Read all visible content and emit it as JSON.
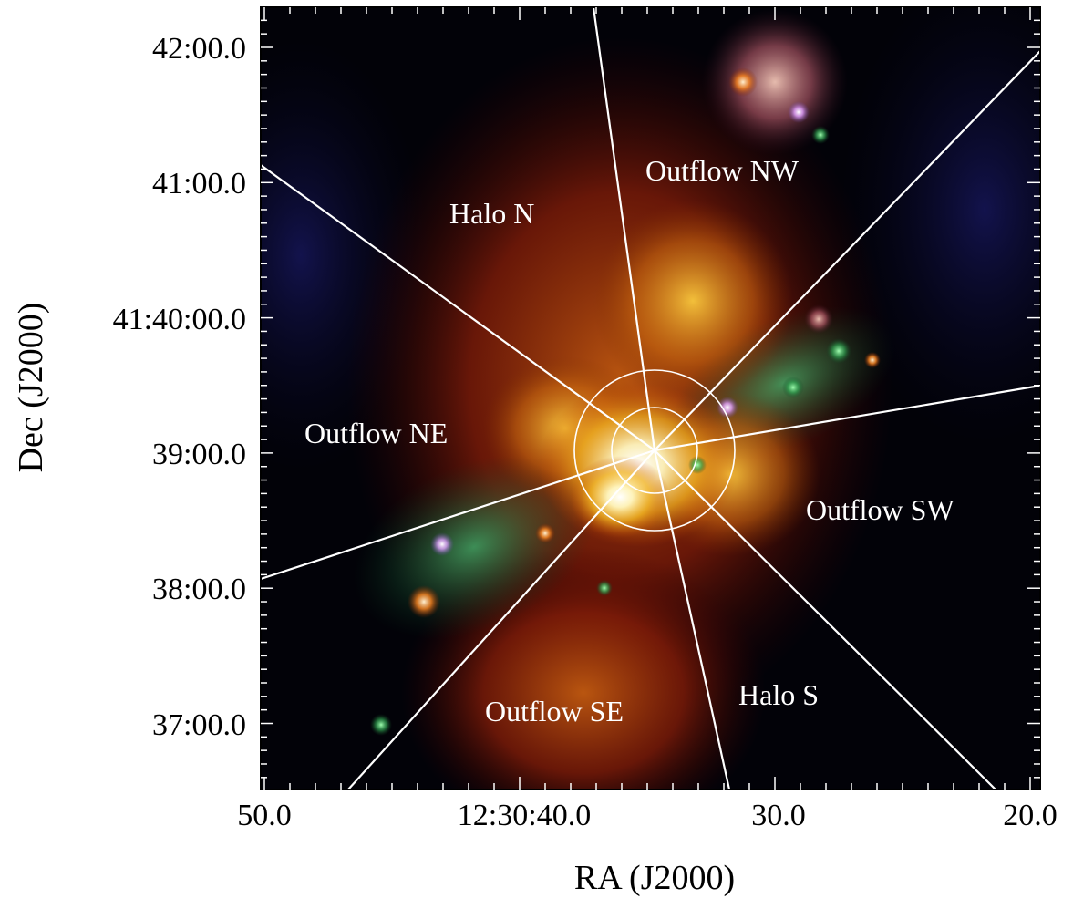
{
  "figure": {
    "x_axis_title": "RA (J2000)",
    "y_axis_title": "Dec (J2000)",
    "x_tick_labels": [
      "50.0",
      "12:30:40.0",
      "30.0",
      "20.0"
    ],
    "y_tick_labels": [
      "42:00.0",
      "41:00.0",
      "41:40:00.0",
      "39:00.0",
      "38:00.0",
      "37:00.0"
    ]
  },
  "regions": {
    "outflow_nw": "Outflow NW",
    "halo_n": "Halo N",
    "outflow_ne": "Outflow NE",
    "outflow_sw": "Outflow SW",
    "outflow_se": "Outflow SE",
    "halo_s": "Halo S"
  },
  "colors": {
    "background": "#000000",
    "overlay_lines": "#ffffff",
    "text": "#000000"
  }
}
